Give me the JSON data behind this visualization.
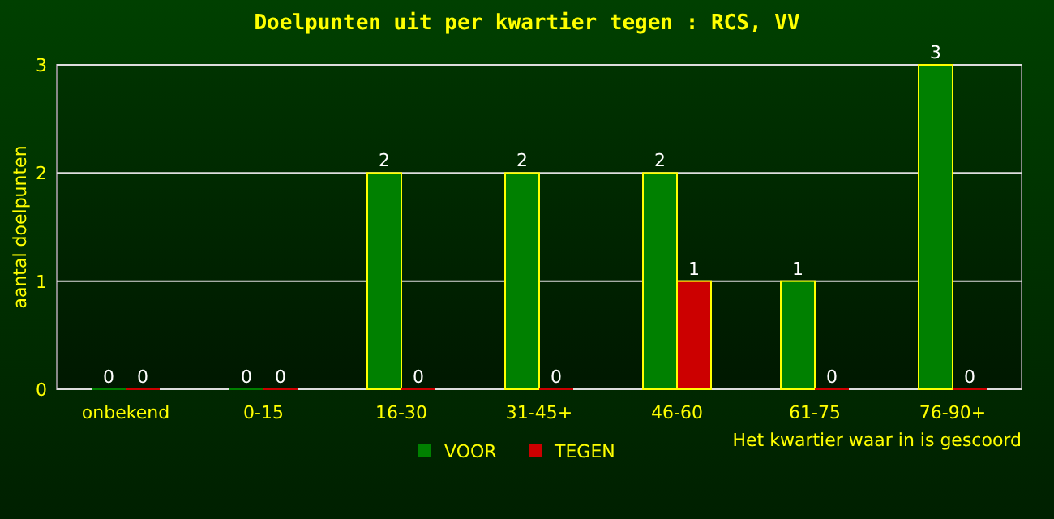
{
  "chart_data": {
    "type": "bar",
    "title": "Doelpunten uit per kwartier tegen : RCS, VV",
    "xlabel": "Het kwartier waar in is gescoord",
    "ylabel": "aantal doelpunten",
    "categories": [
      "onbekend",
      "0-15",
      "16-30",
      "31-45+",
      "46-60",
      "61-75",
      "76-90+"
    ],
    "series": [
      {
        "name": "VOOR",
        "color": "#008000",
        "values": [
          0,
          0,
          2,
          2,
          2,
          1,
          3
        ]
      },
      {
        "name": "TEGEN",
        "color": "#cc0000",
        "values": [
          0,
          0,
          0,
          0,
          1,
          0,
          0
        ]
      }
    ],
    "ylim": [
      0,
      3
    ],
    "yticks": [
      0,
      1,
      2,
      3
    ],
    "grid": "y",
    "legend": "bottom",
    "data_labels": true
  }
}
